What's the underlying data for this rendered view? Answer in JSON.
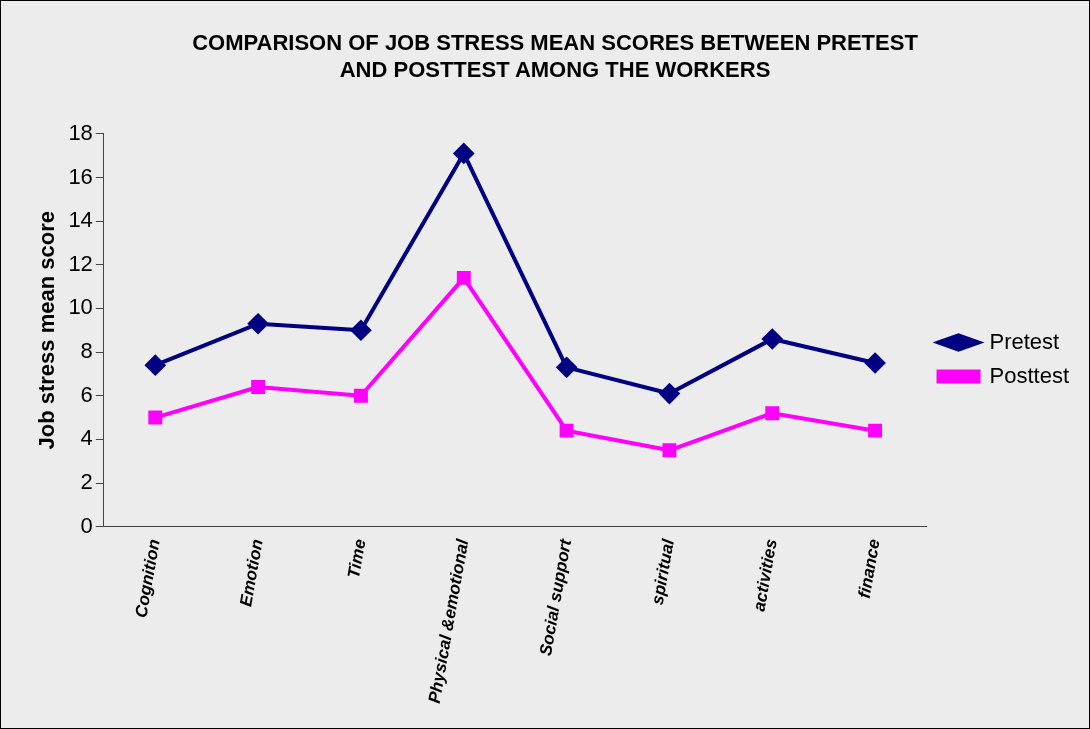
{
  "chart_data": {
    "type": "line",
    "title": "COMPARISON OF JOB STRESS MEAN SCORES BETWEEN PRETEST AND POSTTEST AMONG THE WORKERS",
    "ylabel": "Job stress mean score",
    "categories": [
      "Cognition",
      "Emotion",
      "Time",
      "Physical &emotional",
      "Social support",
      "spiritual",
      "activities",
      "finance"
    ],
    "series": [
      {
        "name": "Pretest",
        "color": "#000080",
        "marker": "diamond",
        "values": [
          7.4,
          9.3,
          9.0,
          17.1,
          7.3,
          6.1,
          8.6,
          7.5
        ]
      },
      {
        "name": "Posttest",
        "color": "#ff00ff",
        "marker": "square",
        "values": [
          5.0,
          6.4,
          6.0,
          11.4,
          4.4,
          3.5,
          5.2,
          4.4
        ]
      }
    ],
    "ylim": [
      0,
      18
    ],
    "yticks": [
      0,
      2,
      4,
      6,
      8,
      10,
      12,
      14,
      16,
      18
    ],
    "grid": false,
    "legend": "right",
    "line_style": "solid"
  }
}
